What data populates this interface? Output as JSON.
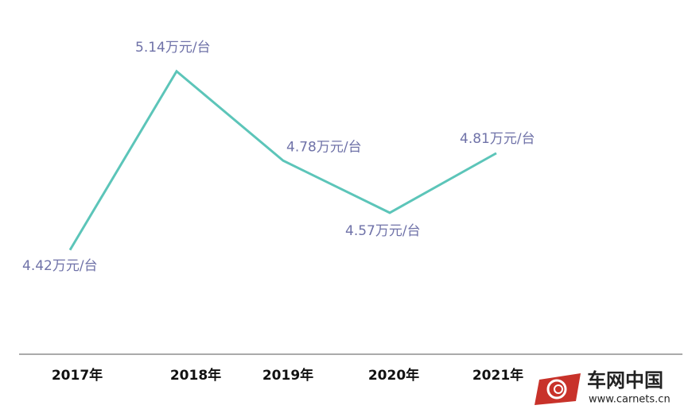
{
  "chart_data": {
    "type": "line",
    "categories": [
      "2017年",
      "2018年",
      "2019年",
      "2020年",
      "2021年"
    ],
    "values": [
      4.42,
      5.14,
      4.78,
      4.57,
      4.81
    ],
    "value_labels": [
      "4.42万元/台",
      "5.14万元/台",
      "4.78万元/台",
      "4.57万元/台",
      "4.81万元/台"
    ],
    "color": "#5cc5b9",
    "ylim": [
      4.0,
      5.4
    ]
  },
  "watermark": {
    "brand": "车网中国",
    "url": "www.carnets.cn"
  }
}
